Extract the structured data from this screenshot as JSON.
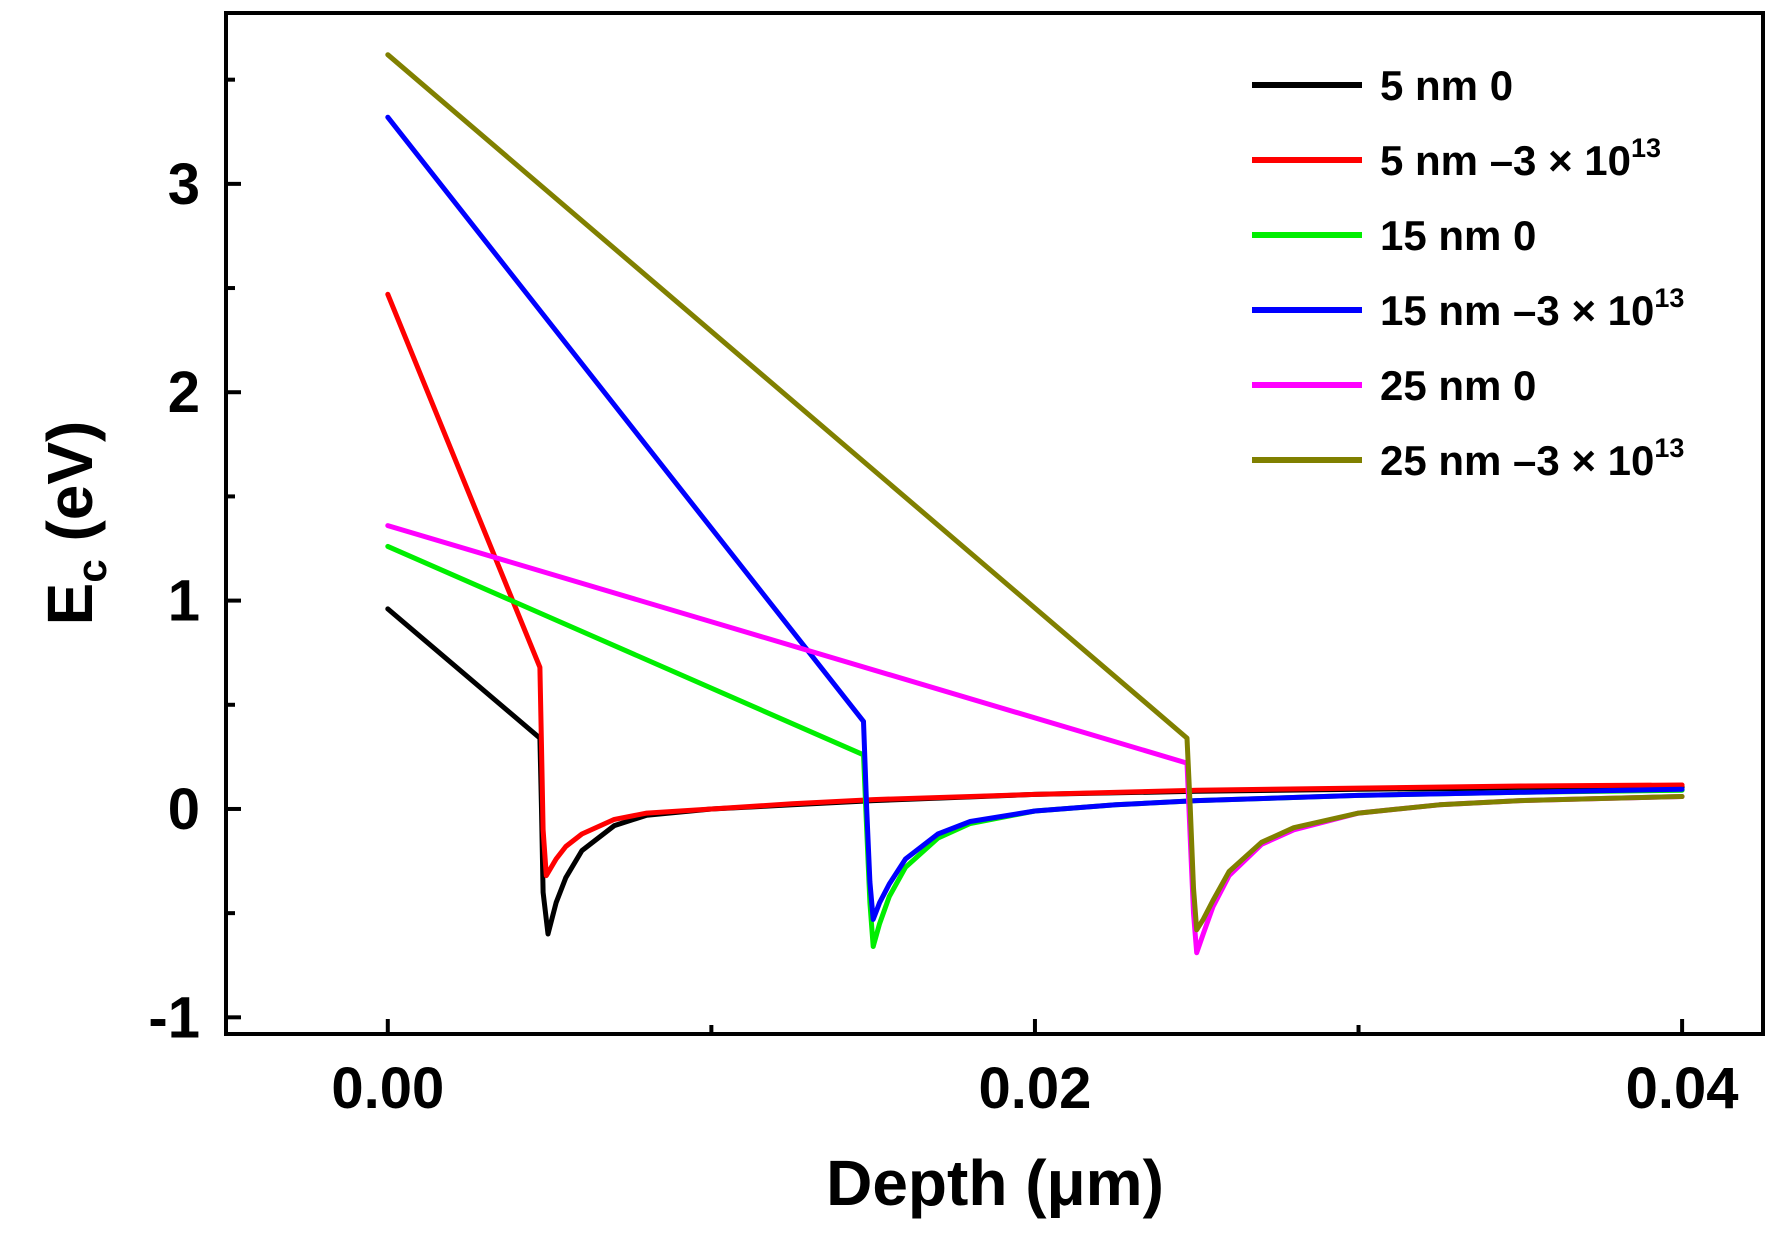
{
  "chart_data": {
    "type": "line",
    "title": "",
    "xlabel": "Depth (μm)",
    "ylabel": {
      "main": "E",
      "subscript": "c",
      "unit": " (eV)"
    },
    "xlim": [
      -0.005,
      0.0425
    ],
    "ylim": [
      -1.08,
      3.82
    ],
    "xticks": [
      {
        "value": 0.0,
        "label": "0.00"
      },
      {
        "value": 0.02,
        "label": "0.02"
      },
      {
        "value": 0.04,
        "label": "0.04"
      }
    ],
    "xminor_ticks": [
      0.01,
      0.03
    ],
    "yticks": [
      {
        "value": -1,
        "label": "-1"
      },
      {
        "value": 0,
        "label": "0"
      },
      {
        "value": 1,
        "label": "1"
      },
      {
        "value": 2,
        "label": "2"
      },
      {
        "value": 3,
        "label": "3"
      }
    ],
    "yminor_ticks": [
      -0.5,
      0.5,
      1.5,
      2.5,
      3.5
    ],
    "grid": false,
    "legend_position": "top-right",
    "series": [
      {
        "name": "5 nm 0",
        "legend": {
          "base": "5 nm 0",
          "sup": ""
        },
        "color": "#000000",
        "x": [
          0.0,
          0.0047,
          0.00475,
          0.0048,
          0.00495,
          0.0052,
          0.0055,
          0.006,
          0.007,
          0.008,
          0.01,
          0.0125,
          0.015,
          0.02,
          0.025,
          0.03,
          0.035,
          0.04
        ],
        "y": [
          0.96,
          0.34,
          0.0,
          -0.4,
          -0.6,
          -0.45,
          -0.33,
          -0.2,
          -0.08,
          -0.03,
          0.0,
          0.02,
          0.04,
          0.07,
          0.085,
          0.095,
          0.1,
          0.105
        ]
      },
      {
        "name": "5 nm –3 × 10^13",
        "legend": {
          "base": "5 nm –3 × 10",
          "sup": "13"
        },
        "color": "#ff0000",
        "x": [
          0.0,
          0.0047,
          0.00475,
          0.0048,
          0.0049,
          0.0052,
          0.0055,
          0.006,
          0.007,
          0.008,
          0.01,
          0.0125,
          0.015,
          0.02,
          0.025,
          0.03,
          0.035,
          0.04
        ],
        "y": [
          2.47,
          0.68,
          0.3,
          -0.1,
          -0.32,
          -0.24,
          -0.18,
          -0.12,
          -0.05,
          -0.02,
          0.0,
          0.025,
          0.045,
          0.07,
          0.09,
          0.1,
          0.11,
          0.115
        ]
      },
      {
        "name": "15 nm 0",
        "legend": {
          "base": "15 nm 0",
          "sup": ""
        },
        "color": "#00ee00",
        "x": [
          0.0,
          0.0147,
          0.0148,
          0.0149,
          0.015,
          0.0152,
          0.0155,
          0.016,
          0.017,
          0.018,
          0.02,
          0.0225,
          0.025,
          0.03,
          0.035,
          0.04
        ],
        "y": [
          1.26,
          0.26,
          -0.1,
          -0.45,
          -0.66,
          -0.55,
          -0.42,
          -0.28,
          -0.14,
          -0.07,
          -0.01,
          0.02,
          0.04,
          0.065,
          0.08,
          0.09
        ]
      },
      {
        "name": "15 nm –3 × 10^13",
        "legend": {
          "base": "15 nm –3 × 10",
          "sup": "13"
        },
        "color": "#0000ff",
        "x": [
          0.0,
          0.0147,
          0.0148,
          0.0149,
          0.015,
          0.0152,
          0.0155,
          0.016,
          0.017,
          0.018,
          0.02,
          0.0225,
          0.025,
          0.03,
          0.035,
          0.04
        ],
        "y": [
          3.32,
          0.42,
          0.0,
          -0.35,
          -0.53,
          -0.45,
          -0.36,
          -0.24,
          -0.12,
          -0.06,
          -0.01,
          0.02,
          0.04,
          0.065,
          0.08,
          0.095
        ]
      },
      {
        "name": "25 nm 0",
        "legend": {
          "base": "25 nm 0",
          "sup": ""
        },
        "color": "#ff00ff",
        "x": [
          0.0,
          0.0247,
          0.0248,
          0.0249,
          0.025,
          0.0252,
          0.0255,
          0.026,
          0.027,
          0.028,
          0.03,
          0.0325,
          0.035,
          0.0375,
          0.04
        ],
        "y": [
          1.36,
          0.22,
          -0.15,
          -0.5,
          -0.69,
          -0.6,
          -0.47,
          -0.32,
          -0.17,
          -0.1,
          -0.02,
          0.02,
          0.04,
          0.05,
          0.06
        ]
      },
      {
        "name": "25 nm –3 × 10^13",
        "legend": {
          "base": "25 nm –3 × 10",
          "sup": "13"
        },
        "color": "#808000",
        "x": [
          0.0,
          0.0247,
          0.0248,
          0.0249,
          0.025,
          0.0252,
          0.0255,
          0.026,
          0.027,
          0.028,
          0.03,
          0.0325,
          0.035,
          0.0375,
          0.04
        ],
        "y": [
          3.62,
          0.34,
          0.0,
          -0.38,
          -0.58,
          -0.53,
          -0.44,
          -0.3,
          -0.16,
          -0.09,
          -0.02,
          0.02,
          0.04,
          0.05,
          0.06
        ]
      }
    ]
  }
}
